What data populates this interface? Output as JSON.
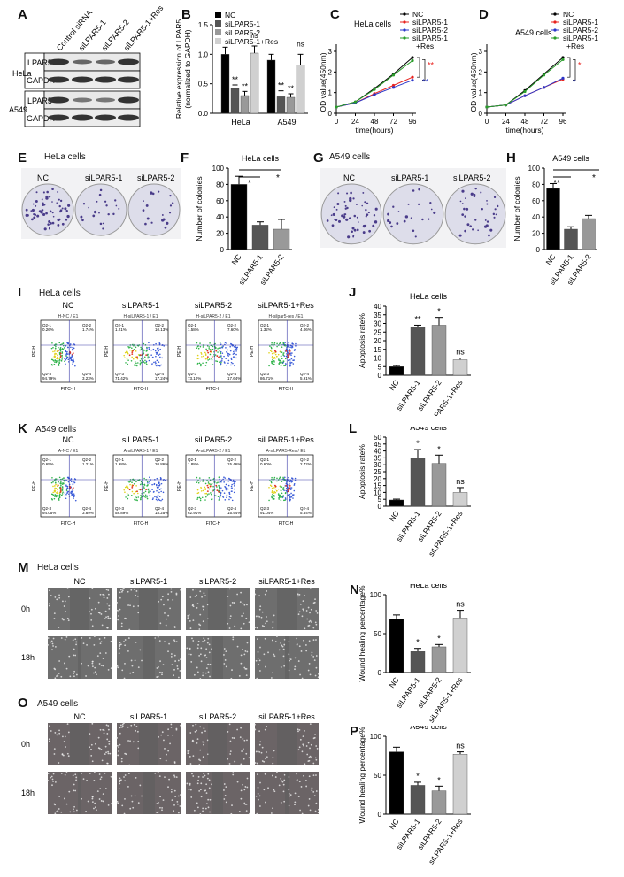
{
  "panels": {
    "A": {
      "letter": "A",
      "lanes": [
        "Control siRNA",
        "siLPAR5-1",
        "siLPAR5-2",
        "siLPAR5-1+Res"
      ],
      "cell_lines": [
        "HeLa",
        "A549"
      ],
      "proteins": [
        "LPAR5",
        "GAPDH"
      ]
    },
    "B": {
      "letter": "B"
    },
    "C": {
      "letter": "C"
    },
    "D": {
      "letter": "D"
    },
    "E": {
      "letter": "E",
      "title": "HeLa cells",
      "labels": [
        "NC",
        "siLPAR5-1",
        "siLPAR5-2"
      ]
    },
    "F": {
      "letter": "F"
    },
    "G": {
      "letter": "G",
      "title": "A549 cells",
      "labels": [
        "NC",
        "siLPAR5-1",
        "siLPAR5-2"
      ]
    },
    "H": {
      "letter": "H"
    },
    "I": {
      "letter": "I",
      "title": "HeLa cells",
      "labels": [
        "NC",
        "siLPAR5-1",
        "siLPAR5-2",
        "siLPAR5-1+Res"
      ],
      "plot_titles": [
        "H-NC / E1",
        "H-siLPAR5-1 / E1",
        "H-siLPAR5-2 / E1",
        "H-silpar5-res / E1"
      ],
      "quadrants": [
        [
          "Q2-1",
          "0.26%",
          "Q2-2",
          "1.74%",
          "Q2-3",
          "94.79%",
          "Q2-4",
          "3.23%"
        ],
        [
          "Q2-1",
          "1.21%",
          "Q2-2",
          "10.13%",
          "Q2-3",
          "71.42%",
          "Q2-4",
          "17.24%"
        ],
        [
          "Q2-1",
          "1.58%",
          "Q2-2",
          "7.60%",
          "Q2-3",
          "73.10%",
          "Q2-4",
          "17.64%"
        ],
        [
          "Q2-1",
          "1.32%",
          "Q2-2",
          "4.06%",
          "Q2-3",
          "86.71%",
          "Q2-4",
          "5.91%"
        ]
      ],
      "axis_x": "FITC-H",
      "axis_y": "PE-H"
    },
    "J": {
      "letter": "J"
    },
    "K": {
      "letter": "K",
      "title": "A549 cells",
      "labels": [
        "NC",
        "siLPAR5-1",
        "siLPAR5-2",
        "siLPAR5-1+Res"
      ],
      "plot_titles": [
        "A-NC / E1",
        "A-siLPAR5-1 / E1",
        "A-siLPAR5-2 / E1",
        "A-siLPAR5-Res / E1"
      ],
      "quadrants": [
        [
          "Q2-1",
          "0.65%",
          "Q2-2",
          "1.21%",
          "Q2-3",
          "94.05%",
          "Q2-4",
          "3.89%"
        ],
        [
          "Q2-1",
          "1.98%",
          "Q2-2",
          "20.86%",
          "Q2-3",
          "58.89%",
          "Q2-4",
          "18.25%"
        ],
        [
          "Q2-1",
          "1.88%",
          "Q2-2",
          "15.46%",
          "Q2-3",
          "62.91%",
          "Q2-4",
          "15.94%"
        ],
        [
          "Q2-1",
          "0.60%",
          "Q2-2",
          "2.72%",
          "Q2-3",
          "91.04%",
          "Q2-4",
          "5.64%"
        ]
      ],
      "axis_x": "FITC-H",
      "axis_y": "PE-H"
    },
    "L": {
      "letter": "L"
    },
    "M": {
      "letter": "M",
      "title": "HeLa cells",
      "labels": [
        "NC",
        "siLPAR5-1",
        "siLPAR5-2",
        "siLPAR5-1+Res"
      ],
      "rows": [
        "0h",
        "18h"
      ]
    },
    "N": {
      "letter": "N"
    },
    "O": {
      "letter": "O",
      "title": "A549 cells",
      "labels": [
        "NC",
        "siLPAR5-1",
        "siLPAR5-2",
        "siLPAR5-1+Res"
      ],
      "rows": [
        "0h",
        "18h"
      ]
    },
    "P": {
      "letter": "P"
    }
  },
  "colors": {
    "black": "#000000",
    "dark": "#555555",
    "mid": "#999999",
    "light": "#d0d0d0",
    "red": "#e8231f",
    "blue": "#2a36c9",
    "green": "#2a9d2a"
  },
  "chart_data": [
    {
      "id": "B",
      "type": "bar",
      "ylabel": "Relative expression of LPAR5\n(normalized to GAPDH)",
      "categories": [
        "HeLa",
        "A549"
      ],
      "ylim": [
        0,
        1.5
      ],
      "yticks": [
        0,
        0.5,
        1.0,
        1.5
      ],
      "legend": [
        "NC",
        "siLPAR5-1",
        "siLPAR5-2",
        "siLPAR5-1+Res"
      ],
      "series": [
        {
          "name": "NC",
          "values": [
            1.0,
            0.9
          ],
          "errors": [
            0.12,
            0.1
          ]
        },
        {
          "name": "siLPAR5-1",
          "values": [
            0.42,
            0.28
          ],
          "errors": [
            0.06,
            0.1
          ]
        },
        {
          "name": "siLPAR5-2",
          "values": [
            0.3,
            0.27
          ],
          "errors": [
            0.07,
            0.06
          ]
        },
        {
          "name": "siLPAR5-1+Res",
          "values": [
            1.02,
            0.82
          ],
          "errors": [
            0.12,
            0.18
          ]
        }
      ],
      "annotations": [
        [
          "**",
          "**",
          "ns"
        ],
        [
          "**",
          "**",
          "ns"
        ]
      ]
    },
    {
      "id": "C",
      "type": "line",
      "title": "HeLa cells",
      "xlabel": "time(hours)",
      "ylabel": "OD value(450nm)",
      "x": [
        0,
        24,
        48,
        72,
        96
      ],
      "ylim": [
        0,
        3
      ],
      "yticks": [
        0,
        1,
        2,
        3
      ],
      "series": [
        {
          "name": "NC",
          "values": [
            0.3,
            0.55,
            1.2,
            1.9,
            2.7
          ]
        },
        {
          "name": "siLPAR5-1",
          "values": [
            0.3,
            0.5,
            0.95,
            1.35,
            1.75
          ]
        },
        {
          "name": "siLPAR5-2",
          "values": [
            0.3,
            0.5,
            0.9,
            1.25,
            1.6
          ]
        },
        {
          "name": "siLPAR5-1\n+Res",
          "values": [
            0.3,
            0.55,
            1.15,
            1.85,
            2.55
          ]
        }
      ],
      "annotations": [
        "**",
        "**"
      ]
    },
    {
      "id": "D",
      "type": "line",
      "title": "A549 cells",
      "xlabel": "time(hours)",
      "ylabel": "OD value(450nm)",
      "x": [
        0,
        24,
        48,
        72,
        96
      ],
      "ylim": [
        0,
        3
      ],
      "yticks": [
        0,
        1,
        2,
        3
      ],
      "series": [
        {
          "name": "NC",
          "values": [
            0.3,
            0.4,
            1.1,
            1.9,
            2.7
          ]
        },
        {
          "name": "siLPAR5-1",
          "values": [
            0.3,
            0.4,
            0.85,
            1.25,
            1.65
          ]
        },
        {
          "name": "siLPAR5-2",
          "values": [
            0.3,
            0.4,
            0.85,
            1.25,
            1.7
          ]
        },
        {
          "name": "siLPAR5-1\n+Res",
          "values": [
            0.3,
            0.4,
            1.05,
            1.85,
            2.6
          ]
        }
      ],
      "annotations": [
        "*",
        "*"
      ]
    },
    {
      "id": "F",
      "type": "bar",
      "title": "HeLa cells",
      "ylabel": "Number of colonies",
      "categories": [
        "NC",
        "siLPAR5-1",
        "siLPAR5-2"
      ],
      "values": [
        80,
        30,
        25
      ],
      "errors": [
        10,
        4,
        12
      ],
      "ylim": [
        0,
        100
      ],
      "yticks": [
        0,
        20,
        40,
        60,
        80,
        100
      ],
      "annotations": [
        "*",
        "*"
      ]
    },
    {
      "id": "H",
      "type": "bar",
      "title": "A549 cells",
      "ylabel": "Number of colonies",
      "categories": [
        "NC",
        "siLPAR5-1",
        "siLPAR5-2"
      ],
      "values": [
        75,
        25,
        38
      ],
      "errors": [
        6,
        3,
        4
      ],
      "ylim": [
        0,
        100
      ],
      "yticks": [
        0,
        20,
        40,
        60,
        80,
        100
      ],
      "annotations": [
        "**",
        "*"
      ]
    },
    {
      "id": "J",
      "type": "bar",
      "title": "HeLa cells",
      "ylabel": "Apoptosis rate%",
      "categories": [
        "NC",
        "siLPAR5-1",
        "siLPAR5-2",
        "siLPAR5-1+Res"
      ],
      "values": [
        5,
        28,
        29,
        9
      ],
      "errors": [
        0.6,
        1,
        4.5,
        1
      ],
      "ylim": [
        0,
        40
      ],
      "yticks": [
        0,
        5,
        10,
        15,
        20,
        25,
        30,
        35,
        40
      ],
      "annotations": [
        "",
        "**",
        "*",
        "ns"
      ]
    },
    {
      "id": "L",
      "type": "bar",
      "title": "A549 cells",
      "ylabel": "Apoptosis rate%",
      "categories": [
        "NC",
        "siLPAR5-1",
        "siLPAR5-2",
        "siLPAR5-1+Res"
      ],
      "values": [
        4.5,
        35,
        31,
        10
      ],
      "errors": [
        0.6,
        6,
        6,
        3.5
      ],
      "ylim": [
        0,
        50
      ],
      "yticks": [
        0,
        5,
        10,
        15,
        20,
        25,
        30,
        35,
        40,
        45,
        50
      ],
      "annotations": [
        "",
        "*",
        "*",
        "ns"
      ]
    },
    {
      "id": "N",
      "type": "bar",
      "title": "HeLa cells",
      "ylabel": "Wound healing percentage%",
      "categories": [
        "NC",
        "siLPAR5-1",
        "siLPAR5-2",
        "siLPAR5-1+Res"
      ],
      "values": [
        69,
        27,
        33,
        70
      ],
      "errors": [
        5,
        4,
        3,
        10
      ],
      "ylim": [
        0,
        100
      ],
      "yticks": [
        0,
        50,
        100
      ],
      "annotations": [
        "",
        "*",
        "*",
        "ns"
      ]
    },
    {
      "id": "P",
      "type": "bar",
      "title": "A549 cells",
      "ylabel": "Wound healing percentage%",
      "categories": [
        "NC",
        "siLPAR5-1",
        "siLPAR5-2",
        "siLPAR5-1+Res"
      ],
      "values": [
        80,
        37,
        30,
        77
      ],
      "errors": [
        6,
        4,
        6,
        3
      ],
      "ylim": [
        0,
        100
      ],
      "yticks": [
        0,
        50,
        100
      ],
      "annotations": [
        "",
        "*",
        "*",
        "ns"
      ]
    }
  ]
}
